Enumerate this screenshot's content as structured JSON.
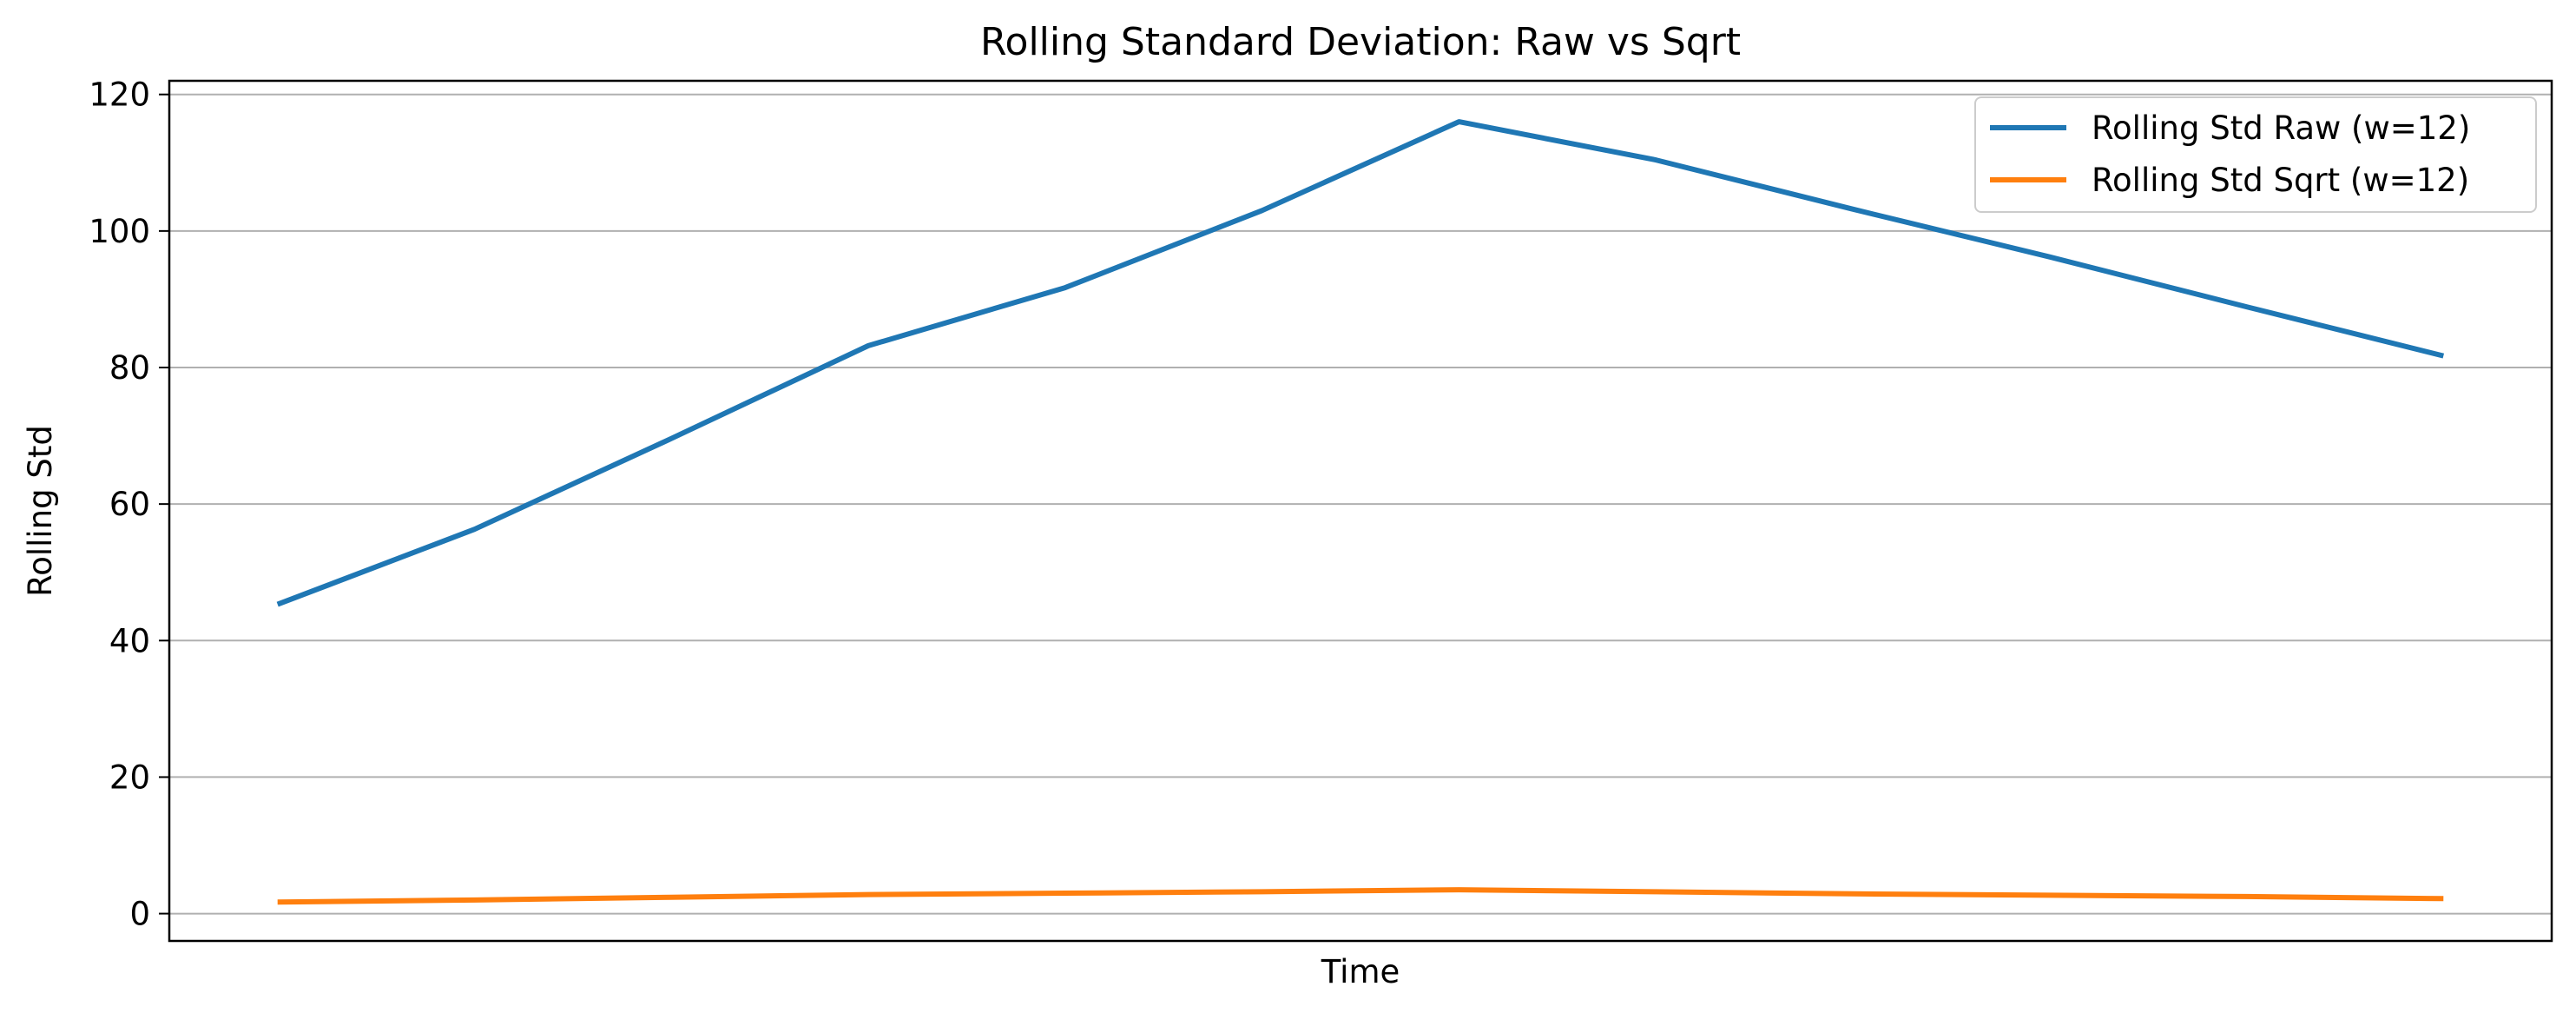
{
  "chart_data": {
    "type": "line",
    "title": "Rolling Standard Deviation: Raw vs Sqrt",
    "xlabel": "Time",
    "ylabel": "Rolling Std",
    "x": [
      0,
      1,
      2,
      3,
      4,
      5,
      6,
      7,
      8,
      9,
      10,
      11
    ],
    "xlim": [
      -0.55,
      11.55
    ],
    "ylim": [
      -4,
      122
    ],
    "yticks": [
      0,
      20,
      40,
      60,
      80,
      100,
      120
    ],
    "grid": "horizontal",
    "legend_position": "top-right",
    "series": [
      {
        "name": "Rolling Std Raw (w=12)",
        "color": "#1f77b4",
        "values": [
          45.3,
          56.3,
          69.6,
          83.2,
          91.7,
          103.0,
          116.0,
          110.4,
          103.2,
          96.2,
          88.9,
          81.7
        ]
      },
      {
        "name": "Rolling Std Sqrt (w=12)",
        "color": "#ff7f0e",
        "values": [
          1.7,
          2.0,
          2.4,
          2.8,
          3.0,
          3.2,
          3.5,
          3.2,
          2.9,
          2.7,
          2.5,
          2.2
        ]
      }
    ]
  }
}
